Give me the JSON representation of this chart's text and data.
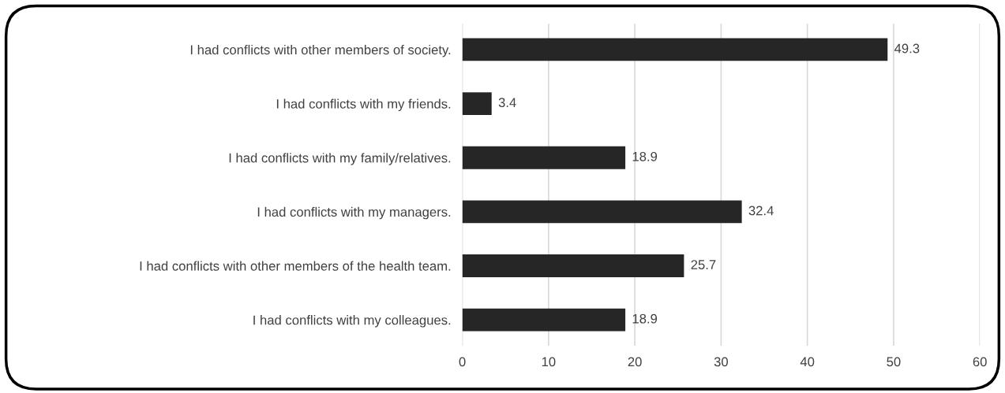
{
  "chart_data": {
    "type": "bar",
    "orientation": "horizontal",
    "categories": [
      "I had conflicts with other members of society.",
      "I had conflicts with my friends.",
      "I had conflicts with my family/relatives.",
      "I had conflicts with my managers.",
      "I had conflicts with other members of the health team.",
      "I had conflicts with my colleagues."
    ],
    "values": [
      49.3,
      3.4,
      18.9,
      32.4,
      25.7,
      18.9
    ],
    "color": "#262626",
    "xlim": [
      0,
      60
    ],
    "xticks": [
      0,
      10,
      20,
      30,
      40,
      50,
      60
    ],
    "grid": "x",
    "data_labels": true
  }
}
